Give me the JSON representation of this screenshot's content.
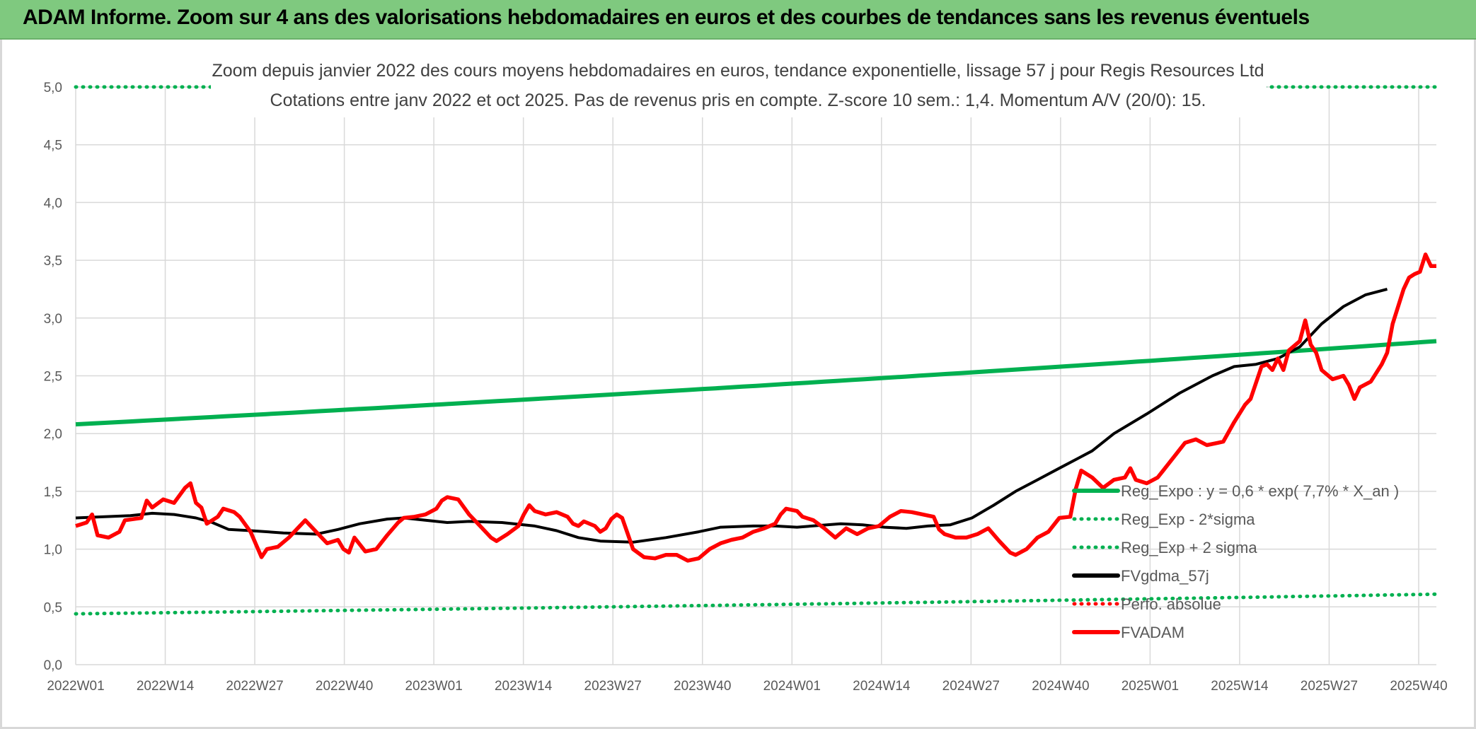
{
  "banner": {
    "title": "ADAM Informe. Zoom sur 4 ans des valorisations hebdomadaires en euros et des courbes de tendances sans les revenus éventuels"
  },
  "colors": {
    "banner_bg": "#7fc97f",
    "green": "#00b050",
    "red": "#ff0000",
    "black": "#000000",
    "grid": "#d9d9d9"
  },
  "chart_data": {
    "type": "line",
    "title": [
      "Zoom depuis janvier 2022 des cours moyens hebdomadaires en euros, tendance exponentielle, lissage 57 j pour Regis Resources Ltd",
      "Cotations entre janv 2022 et oct 2025. Pas de revenus pris en compte. Z-score 10 sem.: 1,4. Momentum A/V (20/0): 15."
    ],
    "xlabel": "",
    "ylabel": "",
    "ylim": [
      0,
      5
    ],
    "y_ticks": [
      "0,0",
      "0,5",
      "1,0",
      "1,5",
      "2,0",
      "2,5",
      "3,0",
      "3,5",
      "4,0",
      "4,5",
      "5,0"
    ],
    "x_ticks": [
      "2022W01",
      "2022W14",
      "2022W27",
      "2022W40",
      "2023W01",
      "2023W14",
      "2023W27",
      "2023W40",
      "2024W01",
      "2024W14",
      "2024W27",
      "2024W40",
      "2025W01",
      "2025W14",
      "2025W27",
      "2025W40"
    ],
    "n_weeks": 196,
    "grid": true,
    "legend_position": "bottom-right inside plot",
    "legend": [
      {
        "label": "Reg_Expo : y = 0,6 * exp( 7,7% *  X_an )",
        "style": "solid",
        "color": "#00b050"
      },
      {
        "label": "Reg_Exp - 2*sigma",
        "style": "dotted",
        "color": "#00b050"
      },
      {
        "label": "Reg_Exp + 2 sigma",
        "style": "dotted",
        "color": "#00b050"
      },
      {
        "label": "FVgdma_57j",
        "style": "solid",
        "color": "#000000"
      },
      {
        "label": "Perfo. absolue",
        "style": "dotted",
        "color": "#ff0000"
      },
      {
        "label": "FVADAM",
        "style": "solid",
        "color": "#ff0000"
      }
    ],
    "series": [
      {
        "name": "Reg_Expo",
        "start": 2.08,
        "end": 2.8
      },
      {
        "name": "Reg_Exp - 2*sigma",
        "start": 0.44,
        "end": 0.61
      },
      {
        "name": "Reg_Exp + 2 sigma",
        "start": 5.0,
        "end": 5.0
      },
      {
        "name": "FVgdma_57j",
        "keypoints": [
          [
            0,
            1.27
          ],
          [
            10,
            1.29
          ],
          [
            14,
            1.31
          ],
          [
            18,
            1.3
          ],
          [
            22,
            1.27
          ],
          [
            25,
            1.23
          ],
          [
            28,
            1.17
          ],
          [
            32,
            1.16
          ],
          [
            38,
            1.14
          ],
          [
            44,
            1.13
          ],
          [
            48,
            1.17
          ],
          [
            52,
            1.22
          ],
          [
            57,
            1.26
          ],
          [
            60,
            1.27
          ],
          [
            64,
            1.25
          ],
          [
            68,
            1.23
          ],
          [
            72,
            1.24
          ],
          [
            78,
            1.23
          ],
          [
            84,
            1.2
          ],
          [
            88,
            1.16
          ],
          [
            92,
            1.1
          ],
          [
            96,
            1.07
          ],
          [
            102,
            1.06
          ],
          [
            108,
            1.1
          ],
          [
            114,
            1.15
          ],
          [
            118,
            1.19
          ],
          [
            124,
            1.2
          ],
          [
            128,
            1.2
          ],
          [
            132,
            1.19
          ],
          [
            140,
            1.22
          ],
          [
            144,
            1.21
          ],
          [
            148,
            1.19
          ],
          [
            152,
            1.18
          ],
          [
            156,
            1.2
          ],
          [
            160,
            1.21
          ],
          [
            164,
            1.27
          ],
          [
            168,
            1.38
          ],
          [
            172,
            1.5
          ],
          [
            176,
            1.6
          ],
          [
            180,
            1.7
          ],
          [
            186,
            1.85
          ],
          [
            190,
            2.0
          ],
          [
            196,
            2.17
          ],
          [
            202,
            2.35
          ],
          [
            208,
            2.5
          ],
          [
            212,
            2.58
          ],
          [
            216,
            2.6
          ],
          [
            220,
            2.65
          ],
          [
            224,
            2.75
          ],
          [
            228,
            2.95
          ],
          [
            232,
            3.1
          ],
          [
            236,
            3.2
          ],
          [
            240,
            3.25
          ]
        ]
      },
      {
        "name": "FVADAM",
        "keypoints": [
          [
            0,
            1.2
          ],
          [
            2,
            1.23
          ],
          [
            3,
            1.3
          ],
          [
            4,
            1.12
          ],
          [
            6,
            1.1
          ],
          [
            8,
            1.15
          ],
          [
            9,
            1.25
          ],
          [
            12,
            1.27
          ],
          [
            13,
            1.42
          ],
          [
            14,
            1.36
          ],
          [
            16,
            1.43
          ],
          [
            18,
            1.4
          ],
          [
            20,
            1.53
          ],
          [
            21,
            1.57
          ],
          [
            22,
            1.4
          ],
          [
            23,
            1.36
          ],
          [
            24,
            1.22
          ],
          [
            26,
            1.28
          ],
          [
            27,
            1.35
          ],
          [
            29,
            1.32
          ],
          [
            30,
            1.28
          ],
          [
            32,
            1.15
          ],
          [
            34,
            0.93
          ],
          [
            35,
            1.0
          ],
          [
            37,
            1.02
          ],
          [
            39,
            1.1
          ],
          [
            42,
            1.25
          ],
          [
            44,
            1.15
          ],
          [
            46,
            1.05
          ],
          [
            48,
            1.08
          ],
          [
            49,
            1.0
          ],
          [
            50,
            0.97
          ],
          [
            51,
            1.1
          ],
          [
            53,
            0.98
          ],
          [
            55,
            1.0
          ],
          [
            57,
            1.12
          ],
          [
            59,
            1.23
          ],
          [
            60,
            1.27
          ],
          [
            62,
            1.28
          ],
          [
            64,
            1.3
          ],
          [
            66,
            1.35
          ],
          [
            67,
            1.42
          ],
          [
            68,
            1.45
          ],
          [
            70,
            1.43
          ],
          [
            72,
            1.3
          ],
          [
            74,
            1.2
          ],
          [
            76,
            1.1
          ],
          [
            77,
            1.07
          ],
          [
            79,
            1.13
          ],
          [
            81,
            1.2
          ],
          [
            82,
            1.3
          ],
          [
            83,
            1.38
          ],
          [
            84,
            1.33
          ],
          [
            86,
            1.3
          ],
          [
            88,
            1.32
          ],
          [
            90,
            1.28
          ],
          [
            91,
            1.22
          ],
          [
            92,
            1.2
          ],
          [
            93,
            1.24
          ],
          [
            95,
            1.2
          ],
          [
            96,
            1.15
          ],
          [
            97,
            1.18
          ],
          [
            98,
            1.26
          ],
          [
            99,
            1.3
          ],
          [
            100,
            1.27
          ],
          [
            102,
            1.0
          ],
          [
            104,
            0.93
          ],
          [
            106,
            0.92
          ],
          [
            108,
            0.95
          ],
          [
            110,
            0.95
          ],
          [
            112,
            0.9
          ],
          [
            114,
            0.92
          ],
          [
            116,
            1.0
          ],
          [
            118,
            1.05
          ],
          [
            120,
            1.08
          ],
          [
            122,
            1.1
          ],
          [
            124,
            1.15
          ],
          [
            126,
            1.18
          ],
          [
            128,
            1.22
          ],
          [
            129,
            1.3
          ],
          [
            130,
            1.35
          ],
          [
            132,
            1.33
          ],
          [
            133,
            1.28
          ],
          [
            135,
            1.25
          ],
          [
            137,
            1.18
          ],
          [
            139,
            1.1
          ],
          [
            141,
            1.18
          ],
          [
            143,
            1.13
          ],
          [
            145,
            1.18
          ],
          [
            147,
            1.2
          ],
          [
            149,
            1.28
          ],
          [
            151,
            1.33
          ],
          [
            153,
            1.32
          ],
          [
            155,
            1.3
          ],
          [
            157,
            1.28
          ],
          [
            158,
            1.17
          ],
          [
            159,
            1.13
          ],
          [
            161,
            1.1
          ],
          [
            163,
            1.1
          ],
          [
            165,
            1.13
          ],
          [
            167,
            1.18
          ],
          [
            169,
            1.07
          ],
          [
            171,
            0.97
          ],
          [
            172,
            0.95
          ],
          [
            174,
            1.0
          ],
          [
            176,
            1.1
          ],
          [
            178,
            1.15
          ],
          [
            180,
            1.27
          ],
          [
            182,
            1.28
          ],
          [
            183,
            1.52
          ],
          [
            184,
            1.68
          ],
          [
            186,
            1.62
          ],
          [
            188,
            1.53
          ],
          [
            190,
            1.6
          ],
          [
            192,
            1.62
          ],
          [
            193,
            1.7
          ],
          [
            194,
            1.6
          ],
          [
            196,
            1.57
          ],
          [
            198,
            1.62
          ],
          [
            199,
            1.68
          ],
          [
            201,
            1.8
          ],
          [
            203,
            1.92
          ],
          [
            205,
            1.95
          ],
          [
            207,
            1.9
          ],
          [
            209,
            1.92
          ],
          [
            210,
            1.93
          ],
          [
            212,
            2.1
          ],
          [
            214,
            2.25
          ],
          [
            215,
            2.3
          ],
          [
            217,
            2.58
          ],
          [
            218,
            2.6
          ],
          [
            219,
            2.55
          ],
          [
            220,
            2.65
          ],
          [
            221,
            2.55
          ],
          [
            222,
            2.72
          ],
          [
            224,
            2.8
          ],
          [
            225,
            2.98
          ],
          [
            226,
            2.77
          ],
          [
            227,
            2.7
          ],
          [
            228,
            2.55
          ],
          [
            230,
            2.47
          ],
          [
            232,
            2.5
          ],
          [
            233,
            2.42
          ],
          [
            234,
            2.3
          ],
          [
            235,
            2.4
          ],
          [
            237,
            2.45
          ],
          [
            239,
            2.6
          ],
          [
            240,
            2.7
          ],
          [
            241,
            2.95
          ],
          [
            243,
            3.25
          ],
          [
            244,
            3.35
          ],
          [
            245,
            3.38
          ],
          [
            246,
            3.4
          ],
          [
            247,
            3.55
          ],
          [
            248,
            3.45
          ],
          [
            249,
            3.45
          ]
        ]
      }
    ]
  }
}
